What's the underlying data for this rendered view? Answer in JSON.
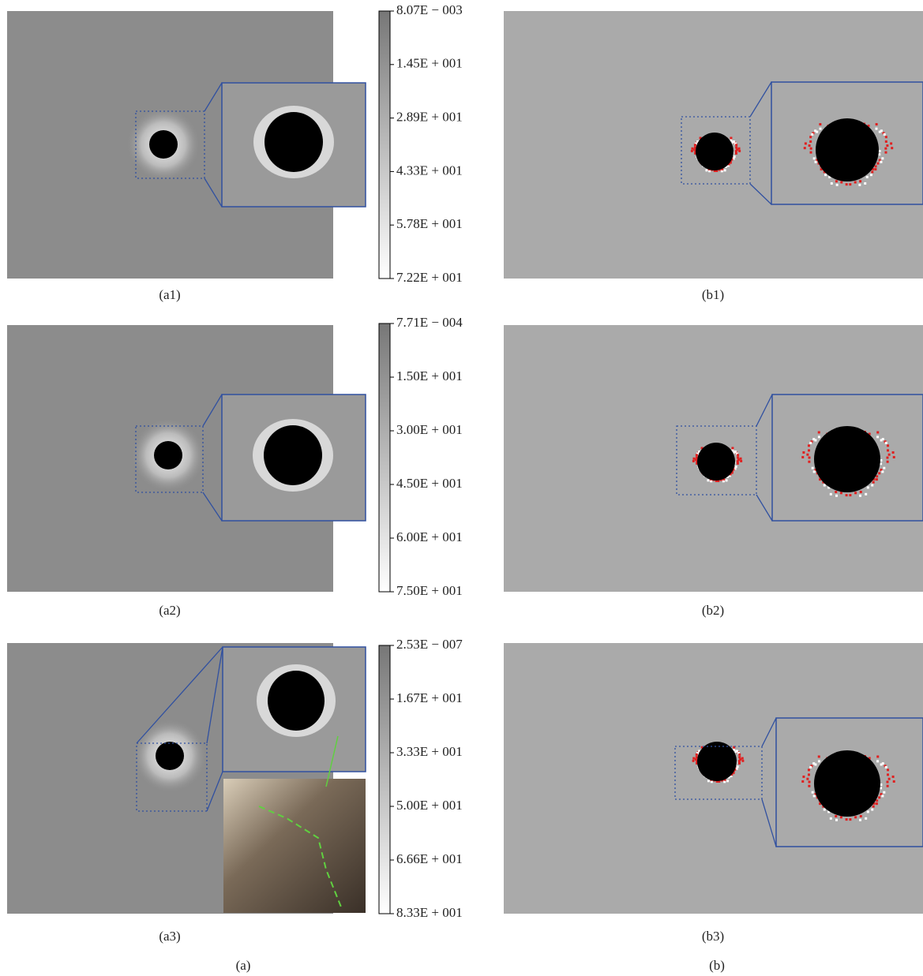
{
  "panels_a": [
    {
      "label": "(a1)",
      "colorbar": [
        "8.07E − 003",
        "1.45E + 001",
        "2.89E + 001",
        "4.33E + 001",
        "5.78E + 001",
        "7.22E + 001"
      ]
    },
    {
      "label": "(a2)",
      "colorbar": [
        "7.71E − 004",
        "1.50E + 001",
        "3.00E + 001",
        "4.50E + 001",
        "6.00E + 001",
        "7.50E + 001"
      ]
    },
    {
      "label": "(a3)",
      "colorbar": [
        "2.53E − 007",
        "1.67E + 001",
        "3.33E + 001",
        "5.00E + 001",
        "6.66E + 001",
        "8.33E + 001"
      ]
    }
  ],
  "panels_b": [
    {
      "label": "(b1)"
    },
    {
      "label": "(b2)"
    },
    {
      "label": "(b3)"
    }
  ],
  "group_labels": [
    "(a)",
    "(b)"
  ]
}
